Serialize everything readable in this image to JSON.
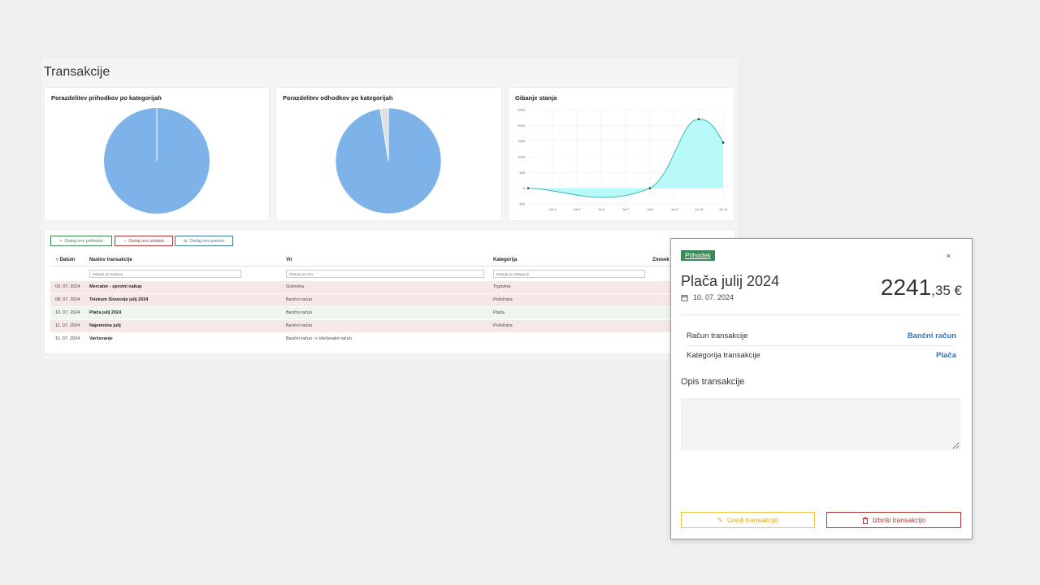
{
  "page": {
    "title": "Transakcije"
  },
  "charts": {
    "income": {
      "title": "Porazdelitev prihodkov po kategorijah"
    },
    "expense": {
      "title": "Porazdelitev odhodkov po kategorijah"
    },
    "balance": {
      "title": "Gibanje stanja"
    }
  },
  "chart_data": [
    {
      "type": "pie",
      "title": "Porazdelitev prihodkov po kategorijah",
      "values": [
        1
      ],
      "colors": [
        "#7db3e8"
      ]
    },
    {
      "type": "pie",
      "title": "Porazdelitev odhodkov po kategorijah",
      "values": [
        97.5,
        2.5
      ],
      "colors": [
        "#7db3e8",
        "#e0e0e0"
      ]
    },
    {
      "type": "area",
      "title": "Gibanje stanja",
      "x": [
        "Jul 3",
        "Jul 8",
        "Jul 10",
        "Jul 11"
      ],
      "values": [
        0,
        0,
        2200,
        1450
      ],
      "xticks": [
        "Jul 4",
        "Jul 5",
        "Jul 6",
        "Jul 7",
        "Jul 8",
        "Jul 9",
        "Jul 10",
        "Jul 11"
      ],
      "yticks": [
        2500,
        2000,
        1500,
        1000,
        500,
        0,
        -500
      ],
      "ylim": [
        -500,
        2500
      ],
      "line_color": "#3cb8b0",
      "fill_color": "#b8fafa",
      "grid": true
    }
  ],
  "toolbar": {
    "add_income": "Dodaj nov prihodek",
    "add_expense": "Dodaj nov izdatek",
    "add_transfer": "Dodaj nov prenos"
  },
  "table": {
    "columns": {
      "date": "Datum",
      "title": "Naslov transakcije",
      "source": "Vir",
      "category": "Kategorija",
      "amount": "Znesek"
    },
    "filters": {
      "title": "Iskanje po naslovu",
      "source": "Iskanje po viru",
      "category": "Iskanje po kategoriji"
    },
    "rows": [
      {
        "date": "03. 07. 2024",
        "title": "Mercator - sprotni nakup",
        "source": "Gotovina",
        "category": "Trgovina"
      },
      {
        "date": "08. 07. 2024",
        "title": "Telekom Slovenije julij 2024",
        "source": "Bančni račun",
        "category": "Položnice"
      },
      {
        "date": "10. 07. 2024",
        "title": "Plača julij 2024",
        "source": "Bančni račun",
        "category": "Plača"
      },
      {
        "date": "11. 07. 2024",
        "title": "Najemnina julij",
        "source": "Bančni račun",
        "category": "Položnice"
      },
      {
        "date": "11. 07. 2024",
        "title": "Varčevanje",
        "source": "Bančni račun -> Varčevalni račun",
        "category": ""
      }
    ]
  },
  "modal": {
    "badge": "Prihodek",
    "close": "×",
    "title": "Plača julij 2024",
    "date": "10. 07. 2024",
    "amount_int": "2241",
    "amount_dec": ",35 €",
    "account_label": "Račun transakcije",
    "account_value": "Bančni račun",
    "category_label": "Kategorija transakcije",
    "category_value": "Plača",
    "desc_title": "Opis transakcije",
    "edit": "Uredi transakcijo",
    "delete": "Izbriši transakcijo"
  }
}
